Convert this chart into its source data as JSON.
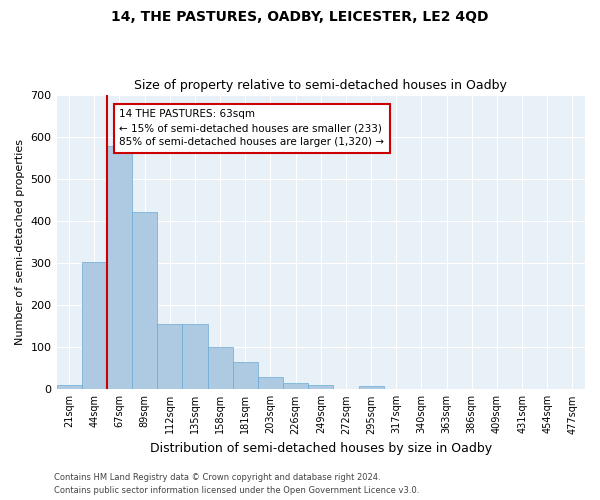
{
  "title1": "14, THE PASTURES, OADBY, LEICESTER, LE2 4QD",
  "title2": "Size of property relative to semi-detached houses in Oadby",
  "xlabel": "Distribution of semi-detached houses by size in Oadby",
  "ylabel": "Number of semi-detached properties",
  "categories": [
    "21sqm",
    "44sqm",
    "67sqm",
    "89sqm",
    "112sqm",
    "135sqm",
    "158sqm",
    "181sqm",
    "203sqm",
    "226sqm",
    "249sqm",
    "272sqm",
    "295sqm",
    "317sqm",
    "340sqm",
    "363sqm",
    "386sqm",
    "409sqm",
    "431sqm",
    "454sqm",
    "477sqm"
  ],
  "values": [
    10,
    302,
    578,
    420,
    155,
    155,
    100,
    65,
    30,
    15,
    10,
    0,
    8,
    0,
    0,
    0,
    0,
    0,
    0,
    0,
    0
  ],
  "bar_color": "#aec9e2",
  "bar_edge_color": "#6aaad4",
  "highlight_color": "#cc0000",
  "annotation_text": "14 THE PASTURES: 63sqm\n← 15% of semi-detached houses are smaller (233)\n85% of semi-detached houses are larger (1,320) →",
  "annotation_box_color": "#cc0000",
  "ylim": [
    0,
    700
  ],
  "yticks": [
    0,
    100,
    200,
    300,
    400,
    500,
    600,
    700
  ],
  "footer1": "Contains HM Land Registry data © Crown copyright and database right 2024.",
  "footer2": "Contains public sector information licensed under the Open Government Licence v3.0.",
  "bg_color": "#e8f0f8",
  "fig_color": "#ffffff"
}
